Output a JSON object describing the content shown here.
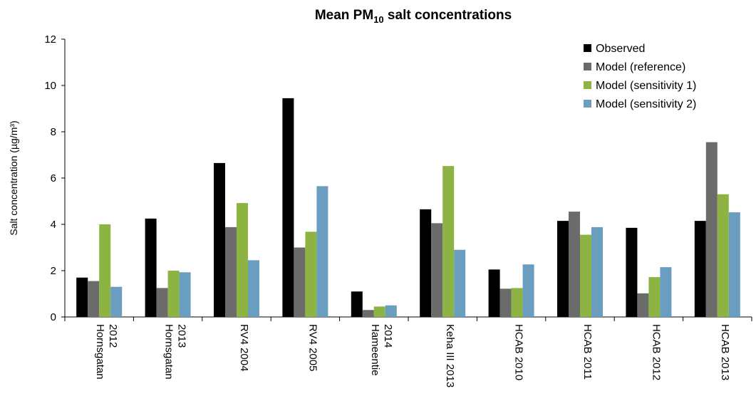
{
  "chart_data": {
    "type": "bar",
    "title": "Mean PM",
    "title_sub": "10",
    "title_rest": " salt concentrations",
    "ylabel": "Salt concentration (µg/m³)",
    "xlabel": "",
    "ylim": [
      0,
      12
    ],
    "yticks": [
      0,
      2,
      4,
      6,
      8,
      10,
      12
    ],
    "grid": false,
    "legend_position": "top-right",
    "categories": [
      [
        "Hornsgatan",
        "2012"
      ],
      [
        "Hornsgatan",
        "2013"
      ],
      [
        "RV4 2004"
      ],
      [
        "RV4 2005"
      ],
      [
        "Hameentie",
        "2014"
      ],
      [
        "Keha III 2013"
      ],
      [
        "HCAB 2010"
      ],
      [
        "HCAB 2011"
      ],
      [
        "HCAB 2012"
      ],
      [
        "HCAB 2013"
      ]
    ],
    "series": [
      {
        "name": "Observed",
        "color": "#000000",
        "values": [
          1.7,
          4.25,
          6.65,
          9.45,
          1.1,
          4.65,
          2.05,
          4.15,
          3.85,
          4.15
        ]
      },
      {
        "name": "Model (reference)",
        "color": "#6b6b6b",
        "values": [
          1.55,
          1.25,
          3.88,
          3.0,
          0.3,
          4.05,
          1.22,
          4.55,
          1.02,
          7.55
        ]
      },
      {
        "name": "Model (sensitivity 1)",
        "color": "#8db343",
        "values": [
          4.0,
          2.0,
          4.92,
          3.68,
          0.45,
          6.52,
          1.25,
          3.55,
          1.72,
          5.3
        ]
      },
      {
        "name": "Model (sensitivity 2)",
        "color": "#6a9ec0",
        "values": [
          1.3,
          1.93,
          2.45,
          5.65,
          0.5,
          2.9,
          2.27,
          3.88,
          2.15,
          4.52
        ]
      }
    ]
  }
}
